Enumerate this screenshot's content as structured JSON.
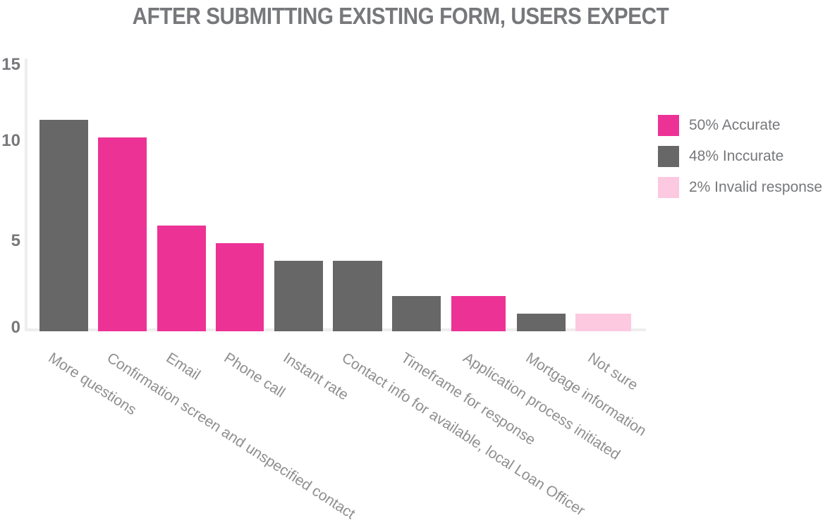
{
  "title": "AFTER SUBMITTING EXISTING FORM, USERS EXPECT",
  "chart_data": {
    "type": "bar",
    "title": "AFTER SUBMITTING EXISTING FORM, USERS EXPECT",
    "categories": [
      "More questions",
      "Confirmation screen and unspecified contact",
      "Email",
      "Phone call",
      "Instant rate",
      "Contact info for available, local Loan Officer",
      "Timeframe for response",
      "Application process initiated",
      "Mortgage information",
      "Not sure"
    ],
    "values": [
      12,
      11,
      6,
      5,
      4,
      4,
      2,
      2,
      1,
      1
    ],
    "bar_legend_group": [
      "inaccurate",
      "accurate",
      "accurate",
      "accurate",
      "inaccurate",
      "inaccurate",
      "inaccurate",
      "accurate",
      "inaccurate",
      "invalid"
    ],
    "y_tick_labels": [
      "15",
      "10",
      "5",
      "0"
    ],
    "ylim": [
      0,
      15
    ],
    "xlabel": "",
    "ylabel": "",
    "grid": false,
    "legend_position": "right",
    "legend": [
      {
        "key": "accurate",
        "label": "50% Accurate",
        "color": "#ED3296"
      },
      {
        "key": "inaccurate",
        "label": "48% Inccurate",
        "color": "#676767"
      },
      {
        "key": "invalid",
        "label": "2% Invalid response",
        "color": "#FDC9E0"
      }
    ],
    "colors": {
      "accurate": "#ED3296",
      "inaccurate": "#676767",
      "invalid": "#FDC9E0",
      "axis_line": "#EFEDEE",
      "title_text": "#77787B",
      "tick_text": "#77787B",
      "category_text": "#8F8F8F",
      "legend_text": "#77787B"
    }
  }
}
